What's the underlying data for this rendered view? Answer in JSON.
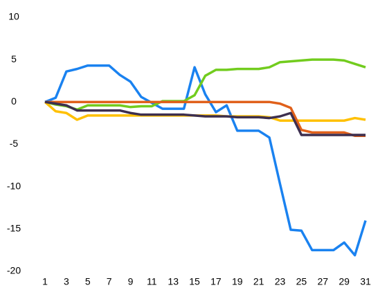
{
  "chart_data": {
    "type": "line",
    "x": [
      1,
      2,
      3,
      4,
      5,
      6,
      7,
      8,
      9,
      10,
      11,
      12,
      13,
      14,
      15,
      16,
      17,
      18,
      19,
      20,
      21,
      22,
      23,
      24,
      25,
      26,
      27,
      28,
      29,
      30,
      31
    ],
    "series": [
      {
        "color": "#1a82f0",
        "values": [
          0,
          0.5,
          3.6,
          3.9,
          4.3,
          4.3,
          4.3,
          3.2,
          2.4,
          0.6,
          -0.1,
          -0.8,
          -0.8,
          -0.8,
          4.1,
          0.9,
          -1.2,
          -0.4,
          -3.4,
          -3.4,
          -3.4,
          -4.2,
          -9.7,
          -15.1,
          -15.2,
          -17.5,
          -17.5,
          -17.5,
          -16.6,
          -18.1,
          -14.0
        ]
      },
      {
        "color": "#72cc1e",
        "values": [
          0,
          -0.3,
          -0.5,
          -0.9,
          -0.4,
          -0.4,
          -0.4,
          -0.4,
          -0.6,
          -0.5,
          -0.5,
          0.1,
          0.1,
          0.1,
          0.8,
          3.1,
          3.8,
          3.8,
          3.9,
          3.9,
          3.9,
          4.1,
          4.7,
          4.8,
          4.9,
          5.0,
          5.0,
          5.0,
          4.9,
          4.5,
          4.1
        ]
      },
      {
        "color": "#ffc000",
        "values": [
          0,
          -1.1,
          -1.3,
          -2.1,
          -1.6,
          -1.6,
          -1.6,
          -1.6,
          -1.6,
          -1.6,
          -1.6,
          -1.6,
          -1.6,
          -1.6,
          -1.6,
          -1.6,
          -1.6,
          -1.7,
          -1.7,
          -1.7,
          -1.7,
          -1.8,
          -2.2,
          -2.2,
          -2.2,
          -2.2,
          -2.2,
          -2.2,
          -2.2,
          -1.9,
          -2.1
        ]
      },
      {
        "color": "#e0601a",
        "values": [
          0,
          0,
          0,
          0,
          0,
          0,
          0,
          0,
          0,
          0,
          0,
          0,
          0,
          0,
          0,
          0,
          0,
          0,
          0,
          0,
          0,
          0,
          -0.2,
          -0.7,
          -3.3,
          -3.6,
          -3.6,
          -3.6,
          -3.6,
          -4.0,
          -4.0
        ]
      },
      {
        "color": "#3d2f4f",
        "values": [
          0,
          -0.2,
          -0.4,
          -1.0,
          -1.0,
          -1.0,
          -1.0,
          -1.0,
          -1.3,
          -1.5,
          -1.5,
          -1.5,
          -1.5,
          -1.5,
          -1.6,
          -1.7,
          -1.7,
          -1.7,
          -1.8,
          -1.8,
          -1.8,
          -1.9,
          -1.7,
          -1.3,
          -3.9,
          -3.9,
          -3.9,
          -3.9,
          -3.9,
          -3.9,
          -3.9
        ]
      }
    ],
    "xlim": [
      1,
      31
    ],
    "xticks": [
      1,
      3,
      5,
      7,
      9,
      11,
      13,
      15,
      17,
      19,
      21,
      23,
      25,
      27,
      29,
      31
    ],
    "ylim": [
      -20,
      10
    ],
    "yticks": [
      -20,
      -15,
      -10,
      -5,
      0,
      5,
      10
    ],
    "grid": false
  }
}
